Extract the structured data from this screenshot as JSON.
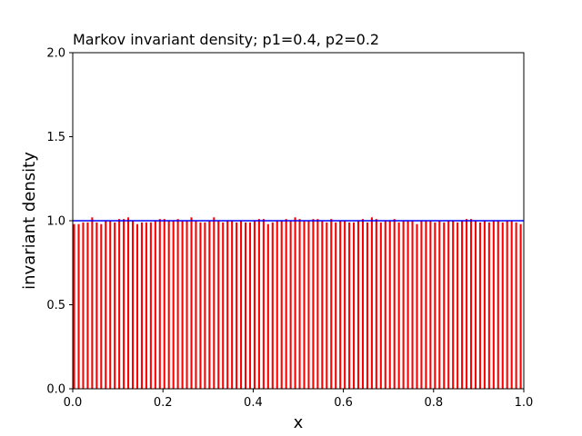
{
  "chart_data": {
    "type": "bar",
    "title": "Markov invariant density; p1=0.4, p2=0.2",
    "xlabel": "x",
    "ylabel": "invariant density",
    "xlim": [
      0.0,
      1.0
    ],
    "ylim": [
      0.0,
      2.0
    ],
    "x_ticks": [
      "0.0",
      "0.2",
      "0.4",
      "0.6",
      "0.8",
      "1.0"
    ],
    "y_ticks": [
      "0.0",
      "0.5",
      "1.0",
      "1.5",
      "2.0"
    ],
    "x_tick_values": [
      0.0,
      0.2,
      0.4,
      0.6,
      0.8,
      1.0
    ],
    "y_tick_values": [
      0.0,
      0.5,
      1.0,
      1.5,
      2.0
    ],
    "grid": false,
    "bin_width": 0.01,
    "bar_color": "#ff0000",
    "reference_line": {
      "y": 1.0,
      "color": "#0000ff"
    },
    "values": [
      0.98,
      0.98,
      0.99,
      0.99,
      1.02,
      0.99,
      0.98,
      1.0,
      1.0,
      0.99,
      1.01,
      1.01,
      1.02,
      1.0,
      0.98,
      0.99,
      0.99,
      0.99,
      1.0,
      1.01,
      1.01,
      1.0,
      1.0,
      1.01,
      1.0,
      1.0,
      1.02,
      1.0,
      0.99,
      0.99,
      1.0,
      1.02,
      1.0,
      0.99,
      1.0,
      1.0,
      0.99,
      1.0,
      0.99,
      0.99,
      1.0,
      1.01,
      1.01,
      0.98,
      0.99,
      1.0,
      1.0,
      1.01,
      1.0,
      1.02,
      1.01,
      1.0,
      1.0,
      1.01,
      1.01,
      1.0,
      0.99,
      1.01,
      0.99,
      1.0,
      1.0,
      0.99,
      0.99,
      1.0,
      1.01,
      0.99,
      1.02,
      1.01,
      0.99,
      1.0,
      1.0,
      1.01,
      0.99,
      1.0,
      1.0,
      1.0,
      0.98,
      1.0,
      1.0,
      1.0,
      0.99,
      1.0,
      0.99,
      1.0,
      1.0,
      0.99,
      1.0,
      1.01,
      1.01,
      1.0,
      0.99,
      1.0,
      0.99,
      1.0,
      1.0,
      0.99,
      1.0,
      1.0,
      0.99,
      0.98
    ]
  }
}
